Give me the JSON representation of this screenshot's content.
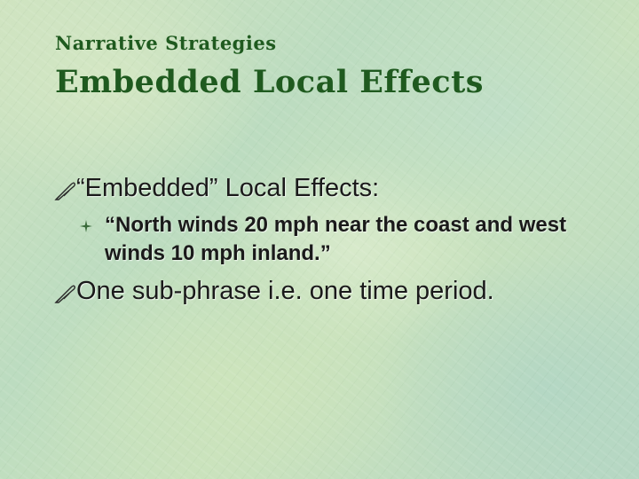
{
  "slide": {
    "subtitle": "Narrative Strategies",
    "title": "Embedded Local Effects",
    "bullets": [
      {
        "text": "“Embedded” Local Effects:",
        "icon": "quill-pen-icon",
        "sub_bullets": [
          {
            "text": "“North winds 20 mph near the coast and west winds 10 mph inland.”",
            "icon": "star-bullet-icon"
          }
        ]
      },
      {
        "text": "One sub-phrase i.e. one time period.",
        "icon": "quill-pen-icon"
      }
    ],
    "colors": {
      "title": "#1f5a1f",
      "body_text": "#1a1a1a",
      "background": "#c3dfc0"
    }
  }
}
